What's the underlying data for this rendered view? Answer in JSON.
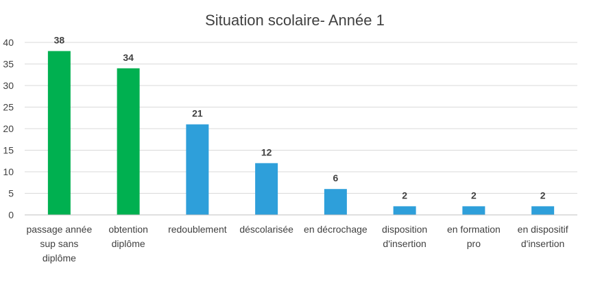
{
  "chart_data": {
    "type": "bar",
    "title": "Situation scolaire- Année 1",
    "xlabel": "",
    "ylabel": "",
    "ylim": [
      0,
      40
    ],
    "yticks": [
      0,
      5,
      10,
      15,
      20,
      25,
      30,
      35,
      40
    ],
    "grid": true,
    "legend": "none",
    "categories": [
      [
        "passage année",
        "sup sans",
        "diplôme"
      ],
      [
        "obtention",
        "diplôme"
      ],
      [
        "redoublement"
      ],
      [
        "déscolarisée"
      ],
      [
        "en décrochage"
      ],
      [
        "disposition",
        "d'insertion"
      ],
      [
        "en formation",
        "pro"
      ],
      [
        "en dispositif",
        "d'insertion"
      ]
    ],
    "values": [
      38,
      34,
      21,
      12,
      6,
      2,
      2,
      2
    ],
    "bar_colors": [
      "#00b050",
      "#00b050",
      "#2e9fda",
      "#2e9fda",
      "#2e9fda",
      "#2e9fda",
      "#2e9fda",
      "#2e9fda"
    ]
  }
}
